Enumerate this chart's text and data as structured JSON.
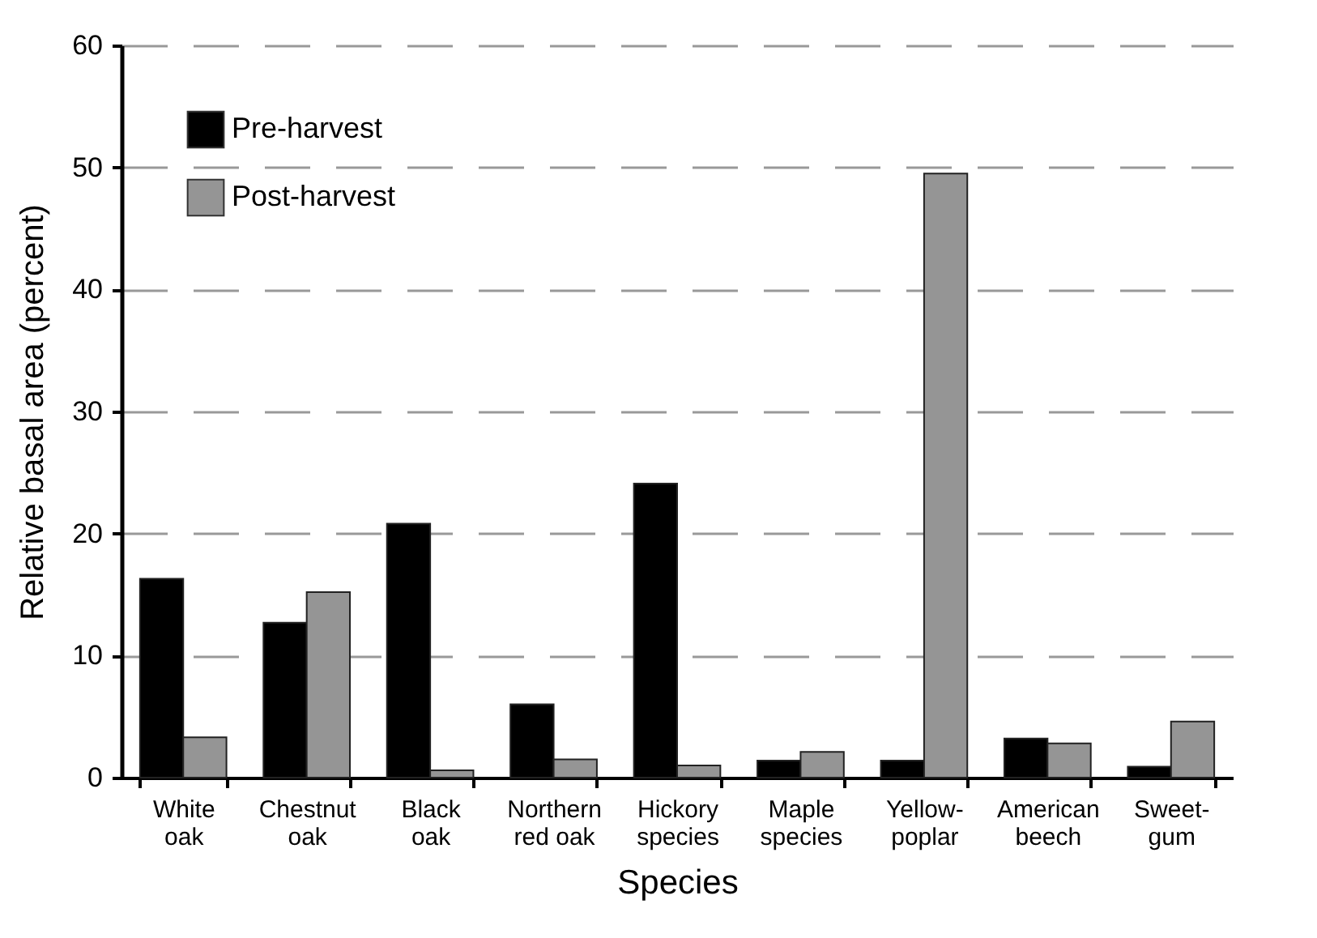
{
  "chart_data": {
    "type": "bar",
    "xlabel": "Species",
    "ylabel": "Relative basal area (percent)",
    "categories": [
      "White oak",
      "Chestnut oak",
      "Black oak",
      "Northern red oak",
      "Hickory species",
      "Maple species",
      "Yellow-poplar",
      "American beech",
      "Sweet-gum"
    ],
    "series": [
      {
        "name": "Pre-harvest",
        "color": "#000000",
        "values": [
          16.3,
          12.7,
          20.8,
          6.0,
          24.1,
          1.4,
          1.4,
          3.2,
          0.9
        ]
      },
      {
        "name": "Post-harvest",
        "color": "#959595",
        "values": [
          3.3,
          15.2,
          0.6,
          1.5,
          1.0,
          2.1,
          49.5,
          2.8,
          4.6
        ]
      }
    ],
    "ylim": [
      0,
      60
    ],
    "yticks": [
      0,
      10,
      20,
      30,
      40,
      50,
      60
    ],
    "grid": "y",
    "legend": "top left"
  }
}
